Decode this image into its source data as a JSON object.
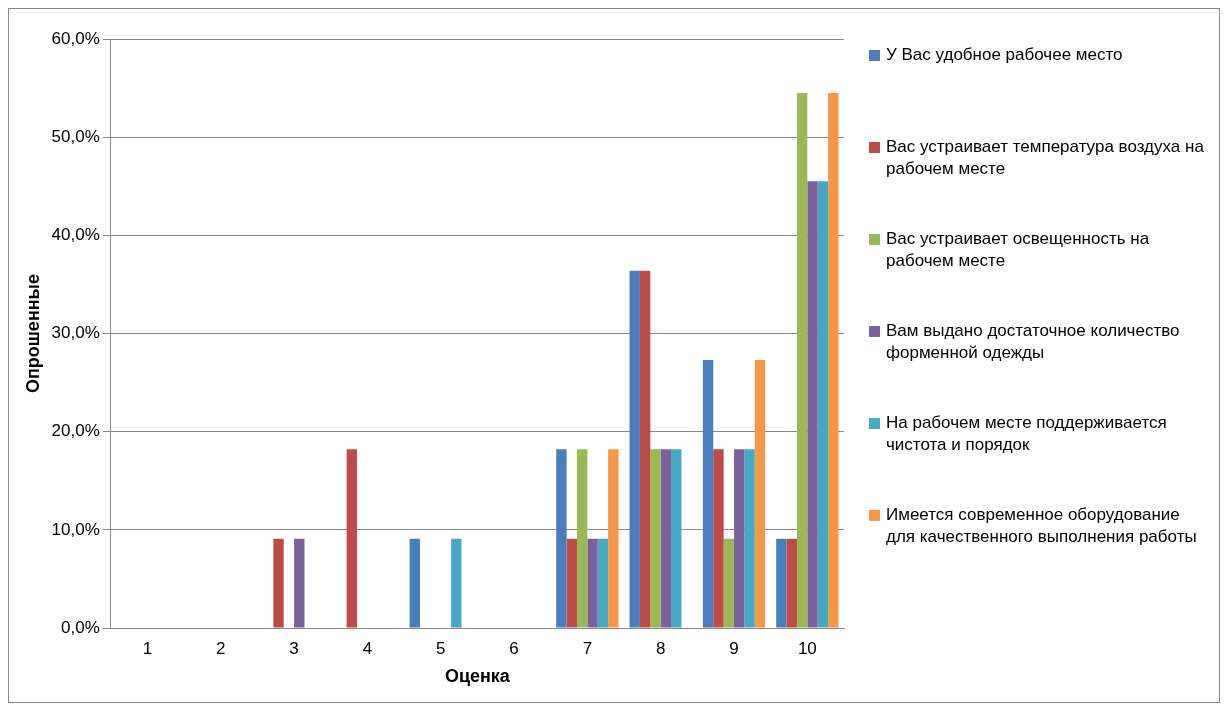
{
  "chart_data": {
    "type": "bar",
    "xlabel": "Оценка",
    "ylabel": "Опрошенные",
    "categories": [
      "1",
      "2",
      "3",
      "4",
      "5",
      "6",
      "7",
      "8",
      "9",
      "10"
    ],
    "series": [
      {
        "name": "У Вас удобное рабочее место",
        "color": "#4a7ebb",
        "values": [
          0,
          0,
          0,
          0,
          9.1,
          0,
          18.2,
          36.4,
          27.3,
          9.1
        ]
      },
      {
        "name": "Вас устраивает температура воздуха на рабочем месте",
        "color": "#be4b48",
        "values": [
          0,
          0,
          9.1,
          18.2,
          0,
          0,
          9.1,
          36.4,
          18.2,
          9.1
        ]
      },
      {
        "name": "Вас устраивает освещенность на рабочем месте",
        "color": "#98b954",
        "values": [
          0,
          0,
          0,
          0,
          0,
          0,
          18.2,
          18.2,
          9.1,
          54.5
        ]
      },
      {
        "name": "Вам выдано достаточное количество форменной одежды",
        "color": "#7d60a0",
        "values": [
          0,
          0,
          9.1,
          0,
          0,
          0,
          9.1,
          18.2,
          18.2,
          45.5
        ]
      },
      {
        "name": "На рабочем месте поддерживается чистота и порядок",
        "color": "#46aac5",
        "values": [
          0,
          0,
          0,
          0,
          9.1,
          0,
          9.1,
          18.2,
          18.2,
          45.5
        ]
      },
      {
        "name": "Имеется современное оборудование для качественного выполнения работы",
        "color": "#f79646",
        "values": [
          0,
          0,
          0,
          0,
          0,
          0,
          18.2,
          0,
          27.3,
          54.5
        ]
      }
    ],
    "ylim": [
      0,
      60
    ],
    "yticks": [
      {
        "value": 0,
        "label": "0,0%"
      },
      {
        "value": 10,
        "label": "10,0%"
      },
      {
        "value": 20,
        "label": "20,0%"
      },
      {
        "value": 30,
        "label": "30,0%"
      },
      {
        "value": 40,
        "label": "40,0%"
      },
      {
        "value": 50,
        "label": "50,0%"
      },
      {
        "value": 60,
        "label": "60,0%"
      }
    ],
    "grid": "y",
    "legend": "right"
  }
}
